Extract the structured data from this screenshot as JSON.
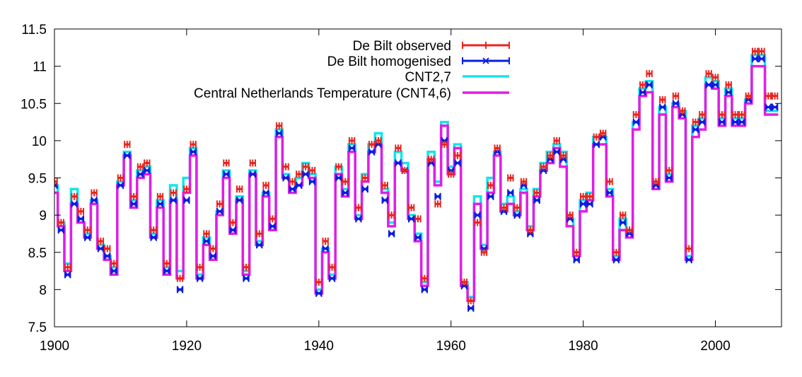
{
  "chart_data": {
    "type": "line",
    "title": "",
    "xlabel": "",
    "ylabel": "",
    "xlim": [
      1900,
      2010
    ],
    "ylim": [
      7.5,
      11.5
    ],
    "xticks": [
      "1900",
      "1920",
      "1940",
      "1960",
      "1980",
      "2000"
    ],
    "yticks": [
      "7.5",
      "8",
      "8.5",
      "9",
      "9.5",
      "10",
      "10.5",
      "11",
      "11.5"
    ],
    "grid": false,
    "legend_position": "top-right",
    "years": [
      1900,
      1901,
      1902,
      1903,
      1904,
      1905,
      1906,
      1907,
      1908,
      1909,
      1910,
      1911,
      1912,
      1913,
      1914,
      1915,
      1916,
      1917,
      1918,
      1919,
      1920,
      1921,
      1922,
      1923,
      1924,
      1925,
      1926,
      1927,
      1928,
      1929,
      1930,
      1931,
      1932,
      1933,
      1934,
      1935,
      1936,
      1937,
      1938,
      1939,
      1940,
      1941,
      1942,
      1943,
      1944,
      1945,
      1946,
      1947,
      1948,
      1949,
      1950,
      1951,
      1952,
      1953,
      1954,
      1955,
      1956,
      1957,
      1958,
      1959,
      1960,
      1961,
      1962,
      1963,
      1964,
      1965,
      1966,
      1967,
      1968,
      1969,
      1970,
      1971,
      1972,
      1973,
      1974,
      1975,
      1976,
      1977,
      1978,
      1979,
      1980,
      1981,
      1982,
      1983,
      1984,
      1985,
      1986,
      1987,
      1988,
      1989,
      1990,
      1991,
      1992,
      1993,
      1994,
      1995,
      1996,
      1997,
      1998,
      1999,
      2000,
      2001,
      2002,
      2003,
      2004,
      2005,
      2006,
      2007,
      2008,
      2009
    ],
    "series": [
      {
        "name": "De Bilt observed",
        "color": "#e8231e",
        "style": "points-errorbars",
        "values": [
          9.45,
          8.9,
          8.3,
          9.25,
          9.05,
          8.8,
          9.3,
          8.65,
          8.55,
          8.35,
          9.5,
          9.95,
          9.25,
          9.65,
          9.7,
          8.8,
          9.25,
          8.35,
          9.3,
          8.15,
          9.35,
          9.95,
          8.3,
          8.75,
          8.55,
          9.15,
          9.7,
          8.9,
          9.35,
          8.3,
          9.7,
          8.75,
          9.4,
          8.95,
          10.2,
          9.65,
          9.45,
          9.55,
          9.65,
          9.6,
          8.1,
          8.65,
          8.3,
          9.65,
          9.45,
          10.0,
          9.1,
          9.5,
          9.95,
          10.0,
          9.4,
          9.0,
          9.9,
          9.6,
          9.1,
          8.95,
          8.15,
          9.75,
          9.15,
          9.95,
          9.55,
          9.8,
          8.1,
          7.85,
          8.9,
          8.5,
          9.4,
          9.9,
          9.1,
          9.5,
          9.1,
          9.45,
          8.8,
          9.3,
          9.65,
          9.8,
          10.0,
          9.8,
          9.0,
          8.5,
          9.25,
          9.25,
          10.05,
          10.1,
          9.45,
          8.5,
          9.0,
          8.8,
          10.35,
          10.75,
          10.9,
          9.45,
          10.55,
          9.6,
          10.6,
          10.4,
          8.55,
          10.25,
          10.35,
          10.9,
          10.85,
          10.35,
          10.75,
          10.35,
          10.35,
          10.6,
          11.2,
          11.2,
          10.6,
          10.6
        ]
      },
      {
        "name": "De Bilt homogenised",
        "color": "#0c1ce0",
        "style": "points-errorbars",
        "values": [
          9.4,
          8.8,
          8.2,
          9.15,
          8.95,
          8.7,
          9.2,
          8.55,
          8.45,
          8.25,
          9.4,
          9.8,
          9.15,
          9.55,
          9.6,
          8.7,
          9.15,
          8.25,
          9.2,
          8.0,
          9.2,
          9.85,
          8.15,
          8.65,
          8.45,
          9.05,
          9.55,
          8.8,
          9.2,
          8.15,
          9.55,
          8.6,
          9.3,
          8.85,
          10.1,
          9.5,
          9.35,
          9.4,
          9.55,
          9.45,
          7.95,
          8.55,
          8.15,
          9.5,
          9.3,
          9.9,
          8.95,
          9.35,
          9.85,
          9.95,
          9.2,
          8.75,
          9.7,
          9.6,
          8.95,
          8.7,
          8.0,
          9.7,
          9.25,
          10.0,
          9.6,
          9.7,
          8.05,
          7.75,
          9.0,
          8.55,
          9.25,
          9.85,
          9.05,
          9.3,
          9.0,
          9.4,
          8.75,
          9.2,
          9.6,
          9.75,
          9.85,
          9.75,
          8.95,
          8.4,
          9.15,
          9.15,
          9.95,
          10.05,
          9.3,
          8.4,
          8.9,
          8.75,
          10.25,
          10.65,
          10.75,
          9.4,
          10.45,
          9.5,
          10.5,
          10.35,
          8.4,
          10.15,
          10.25,
          10.75,
          10.75,
          10.25,
          10.65,
          10.25,
          10.25,
          10.55,
          11.1,
          11.1,
          10.45,
          10.45
        ]
      },
      {
        "name": "CNT2,7",
        "color": "#13e5ec",
        "style": "steps",
        "values": [
          9.4,
          8.9,
          8.35,
          9.35,
          8.9,
          8.75,
          9.2,
          8.6,
          8.45,
          8.3,
          9.45,
          9.85,
          9.2,
          9.6,
          9.65,
          8.75,
          9.2,
          8.3,
          9.4,
          8.25,
          9.5,
          9.9,
          8.2,
          8.7,
          8.45,
          9.05,
          9.6,
          8.8,
          9.25,
          8.25,
          9.6,
          8.65,
          9.3,
          8.85,
          10.15,
          9.55,
          9.35,
          9.5,
          9.7,
          9.55,
          8.0,
          8.55,
          8.2,
          9.65,
          9.35,
          9.95,
          9.0,
          9.55,
          9.95,
          10.1,
          9.35,
          8.9,
          9.85,
          9.7,
          9.0,
          8.75,
          8.1,
          9.85,
          9.45,
          10.25,
          9.65,
          9.95,
          8.1,
          7.9,
          9.25,
          8.6,
          9.5,
          9.85,
          9.15,
          9.25,
          9.05,
          9.35,
          8.85,
          9.35,
          9.7,
          9.85,
          9.95,
          9.85,
          8.95,
          8.5,
          9.2,
          9.3,
          10.05,
          10.05,
          9.35,
          8.45,
          8.95,
          8.8,
          10.25,
          10.7,
          10.8,
          9.45,
          10.45,
          9.55,
          10.5,
          10.4,
          8.45,
          10.2,
          10.3,
          10.85,
          10.8,
          10.3,
          10.7,
          10.3,
          10.3,
          10.55,
          11.15,
          11.15,
          10.4,
          10.4
        ]
      },
      {
        "name": "Central Netherlands Temperature (CNT4,6)",
        "color": "#e11ee5",
        "style": "steps",
        "values": [
          9.3,
          8.85,
          8.25,
          9.15,
          8.9,
          8.7,
          9.15,
          8.55,
          8.4,
          8.2,
          9.4,
          9.8,
          9.1,
          9.5,
          9.55,
          8.7,
          9.1,
          8.2,
          9.2,
          8.15,
          9.3,
          9.8,
          8.15,
          8.6,
          8.4,
          9.0,
          9.5,
          8.75,
          9.2,
          8.2,
          9.55,
          8.6,
          9.25,
          8.8,
          10.05,
          9.5,
          9.3,
          9.4,
          9.55,
          9.5,
          7.95,
          8.5,
          8.15,
          9.55,
          9.25,
          9.85,
          8.95,
          9.45,
          9.85,
          9.95,
          9.3,
          8.85,
          9.7,
          9.6,
          8.95,
          8.65,
          8.05,
          9.75,
          9.4,
          10.2,
          9.55,
          9.9,
          8.05,
          7.85,
          9.15,
          8.55,
          9.3,
          9.8,
          9.05,
          9.15,
          9.0,
          9.3,
          8.8,
          9.25,
          9.6,
          9.7,
          9.9,
          9.65,
          8.85,
          8.45,
          9.05,
          9.2,
          9.95,
          9.95,
          9.25,
          8.4,
          8.8,
          8.7,
          10.15,
          10.6,
          10.65,
          9.35,
          10.35,
          9.45,
          10.45,
          10.3,
          8.4,
          10.05,
          10.15,
          10.75,
          10.7,
          10.2,
          10.6,
          10.2,
          10.2,
          10.5,
          11.0,
          11.0,
          10.35,
          10.35
        ]
      }
    ]
  }
}
